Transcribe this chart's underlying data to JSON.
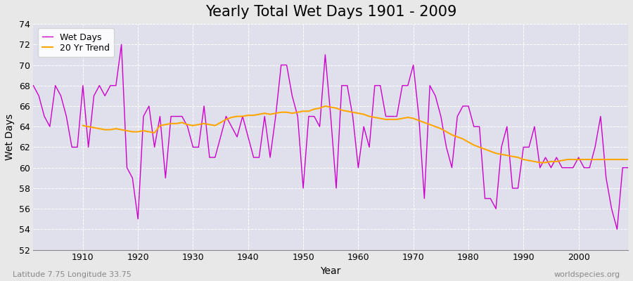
{
  "title": "Yearly Total Wet Days 1901 - 2009",
  "xlabel": "Year",
  "ylabel": "Wet Days",
  "subtitle": "Latitude 7.75 Longitude 33.75",
  "watermark": "worldspecies.org",
  "years": [
    1901,
    1902,
    1903,
    1904,
    1905,
    1906,
    1907,
    1908,
    1909,
    1910,
    1911,
    1912,
    1913,
    1914,
    1915,
    1916,
    1917,
    1918,
    1919,
    1920,
    1921,
    1922,
    1923,
    1924,
    1925,
    1926,
    1927,
    1928,
    1929,
    1930,
    1931,
    1932,
    1933,
    1934,
    1935,
    1936,
    1937,
    1938,
    1939,
    1940,
    1941,
    1942,
    1943,
    1944,
    1945,
    1946,
    1947,
    1948,
    1949,
    1950,
    1951,
    1952,
    1953,
    1954,
    1955,
    1956,
    1957,
    1958,
    1959,
    1960,
    1961,
    1962,
    1963,
    1964,
    1965,
    1966,
    1967,
    1968,
    1969,
    1970,
    1971,
    1972,
    1973,
    1974,
    1975,
    1976,
    1977,
    1978,
    1979,
    1980,
    1981,
    1982,
    1983,
    1984,
    1985,
    1986,
    1987,
    1988,
    1989,
    1990,
    1991,
    1992,
    1993,
    1994,
    1995,
    1996,
    1997,
    1998,
    1999,
    2000,
    2001,
    2002,
    2003,
    2004,
    2005,
    2006,
    2007,
    2008,
    2009
  ],
  "wet_days": [
    68,
    67,
    65,
    64,
    68,
    67,
    65,
    62,
    62,
    68,
    62,
    67,
    68,
    67,
    68,
    68,
    72,
    60,
    59,
    55,
    65,
    66,
    62,
    65,
    59,
    65,
    65,
    65,
    64,
    62,
    62,
    66,
    61,
    61,
    63,
    65,
    64,
    63,
    65,
    63,
    61,
    61,
    65,
    61,
    65,
    70,
    70,
    67,
    65,
    58,
    65,
    65,
    64,
    71,
    65,
    58,
    68,
    68,
    65,
    60,
    64,
    62,
    68,
    68,
    65,
    65,
    65,
    68,
    68,
    70,
    65,
    57,
    68,
    67,
    65,
    62,
    60,
    65,
    66,
    66,
    64,
    64,
    57,
    57,
    56,
    62,
    64,
    58,
    58,
    62,
    62,
    64,
    60,
    61,
    60,
    61,
    60,
    60,
    60,
    61,
    60,
    60,
    62,
    65,
    59,
    56,
    54,
    60,
    60
  ],
  "trend_years": [
    1910,
    1911,
    1912,
    1913,
    1914,
    1915,
    1916,
    1917,
    1918,
    1919,
    1920,
    1921,
    1922,
    1923,
    1924,
    1925,
    1926,
    1927,
    1928,
    1929,
    1930,
    1931,
    1932,
    1933,
    1934,
    1935,
    1936,
    1937,
    1938,
    1939,
    1940,
    1941,
    1942,
    1943,
    1944,
    1945,
    1946,
    1947,
    1948,
    1949,
    1950,
    1951,
    1952,
    1953,
    1954,
    1955,
    1956,
    1957,
    1958,
    1959,
    1960,
    1961,
    1962,
    1963,
    1964,
    1965,
    1966,
    1967,
    1968,
    1969,
    1970,
    1971,
    1972,
    1973,
    1974,
    1975,
    1976,
    1977,
    1978,
    1979,
    1980,
    1981,
    1982,
    1983,
    1984,
    1985,
    1986,
    1987,
    1988,
    1989,
    1990,
    1991,
    1992,
    1993,
    1994,
    1995,
    1996,
    1997,
    1998,
    1999,
    2000,
    2001,
    2002,
    2003,
    2004,
    2005,
    2006,
    2007,
    2008,
    2009
  ],
  "trend_values": [
    64.1,
    64.0,
    63.9,
    63.8,
    63.7,
    63.7,
    63.8,
    63.7,
    63.6,
    63.5,
    63.5,
    63.6,
    63.5,
    63.4,
    64.1,
    64.2,
    64.3,
    64.3,
    64.4,
    64.2,
    64.1,
    64.2,
    64.3,
    64.2,
    64.1,
    64.4,
    64.7,
    64.9,
    65.0,
    65.0,
    65.1,
    65.1,
    65.2,
    65.3,
    65.2,
    65.3,
    65.4,
    65.4,
    65.3,
    65.4,
    65.5,
    65.5,
    65.7,
    65.8,
    66.0,
    65.9,
    65.8,
    65.6,
    65.5,
    65.4,
    65.3,
    65.2,
    65.0,
    64.9,
    64.8,
    64.7,
    64.7,
    64.7,
    64.8,
    64.9,
    64.8,
    64.6,
    64.4,
    64.2,
    64.0,
    63.8,
    63.5,
    63.2,
    63.0,
    62.8,
    62.5,
    62.2,
    62.0,
    61.8,
    61.6,
    61.4,
    61.3,
    61.2,
    61.1,
    61.0,
    60.8,
    60.7,
    60.6,
    60.5,
    60.5,
    60.6,
    60.6,
    60.7,
    60.8,
    60.8,
    60.8,
    60.8,
    60.8,
    60.8,
    60.8,
    60.8,
    60.8,
    60.8,
    60.8,
    60.8
  ],
  "wet_days_color": "#CC00CC",
  "trend_color": "#FFA500",
  "background_color": "#E8E8E8",
  "plot_bg_color": "#E0E0EC",
  "ylim": [
    52,
    74
  ],
  "yticks": [
    52,
    54,
    56,
    58,
    60,
    62,
    64,
    66,
    68,
    70,
    72,
    74
  ],
  "xticks": [
    1910,
    1920,
    1930,
    1940,
    1950,
    1960,
    1970,
    1980,
    1990,
    2000
  ],
  "title_fontsize": 15,
  "axis_fontsize": 10,
  "tick_fontsize": 9,
  "legend_fontsize": 9
}
